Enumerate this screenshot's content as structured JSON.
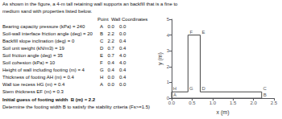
{
  "chart_data": {
    "type": "line",
    "header_lines": [
      "As shown in the figure, a 4-m tall retaining wall supports an backfill that is a fine to",
      "medium sand with properties listed below."
    ],
    "table_header": "Point  Wall Coordinates",
    "properties": [
      "Bearing capacity pressure (kPa) = 240",
      "Soil-wall interface friction angle (deg) = 20",
      "Backfill slope inclination (deg) = 0",
      "Soil unit weight (kN/m3) = 19",
      "Soil friction angle (deg) = 35",
      "Soil cohesion (kPa) = 10",
      "Height of wall including footing (m) = 4",
      "Thickness of footing AH (m) = 0.4",
      "Wall toe recess HG (m) = 0.4",
      "Stem thickness EF (m) = 0.3"
    ],
    "table_rows": [
      [
        "A",
        "0.0",
        "0.0"
      ],
      [
        "B",
        "2.2",
        "0.0"
      ],
      [
        "C",
        "2.2",
        "0.4"
      ],
      [
        "D",
        "0.7",
        "0.4"
      ],
      [
        "E",
        "0.7",
        "4.0"
      ],
      [
        "F",
        "0.4",
        "4.0"
      ],
      [
        "G",
        "0.4",
        "0.4"
      ],
      [
        "H",
        "0.0",
        "0.4"
      ],
      [
        "A",
        "0.0",
        "0.0"
      ]
    ],
    "bold_line": "Initial guess of footing width  B (m) = 2.2",
    "bottom_text": "Determine the footing width B to satisfy the stability criteria (Fs>=1.5)",
    "x": [
      0.0,
      2.2,
      2.2,
      0.7,
      0.7,
      0.4,
      0.4,
      0.0,
      0.0
    ],
    "values": [
      0.0,
      0.0,
      0.4,
      0.4,
      4.0,
      4.0,
      0.4,
      0.4,
      0.0
    ],
    "color": "#444444",
    "annotations": [
      {
        "text": "A",
        "x": 0.0,
        "y": 0.0
      },
      {
        "text": "B",
        "x": 2.2,
        "y": 0.0
      },
      {
        "text": "C",
        "x": 2.2,
        "y": 0.4
      },
      {
        "text": "D",
        "x": 0.7,
        "y": 0.4
      },
      {
        "text": "E",
        "x": 0.7,
        "y": 4.0
      },
      {
        "text": "F",
        "x": 0.4,
        "y": 4.0
      },
      {
        "text": "G",
        "x": 0.4,
        "y": 0.4
      },
      {
        "text": "H",
        "x": 0.0,
        "y": 0.4
      }
    ],
    "xlabel": "x (m)",
    "ylabel": "y (m)",
    "xlim": [
      0,
      2.5
    ],
    "ylim": [
      0,
      5
    ],
    "xticks": [
      {
        "value": 0,
        "label": "0.0"
      },
      0.5,
      {
        "value": 1.0,
        "label": "1.0"
      },
      1.5,
      {
        "value": 2.0,
        "label": "2.0"
      },
      2.5
    ],
    "yticks": [
      0,
      1,
      2,
      3,
      4,
      5
    ],
    "grid": false
  }
}
